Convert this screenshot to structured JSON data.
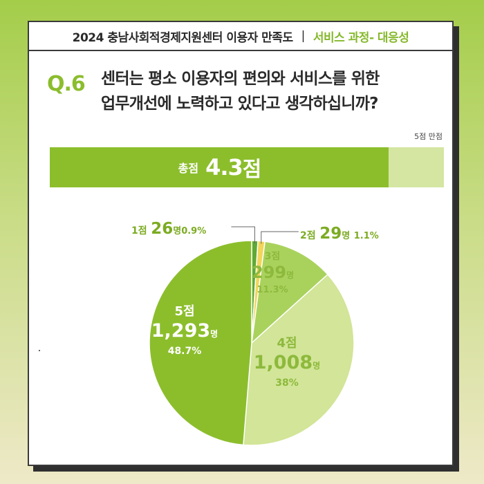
{
  "header": {
    "title": "2024 충남사회적경제지원센터 이용자 만족도",
    "separator": "|",
    "category": "서비스 과정- 대응성"
  },
  "question": {
    "number": "Q.6",
    "line1": "센터는 평소 이용자의 편의와 서비스를 위한",
    "line2": "업무개선에 노력하고 있다고 생각하십니까?"
  },
  "total": {
    "max_label": "5점 만점",
    "label": "총점",
    "score": "4.3",
    "unit": "점",
    "score_value": 4.3,
    "max_value": 5
  },
  "colors": {
    "green_dark": "#8cbe2c",
    "green_mid": "#a9d25d",
    "green_light": "#d2e598",
    "yellow": "#f2d55a",
    "green_small": "#5eaa34"
  },
  "chart_data": {
    "type": "pie",
    "slices": [
      {
        "category": "1점",
        "count": 26,
        "count_text": "26",
        "unit": "명",
        "percent": 0.9,
        "percent_text": "0.9%",
        "color": "#5eaa34"
      },
      {
        "category": "2점",
        "count": 29,
        "count_text": "29",
        "unit": "명",
        "percent": 1.1,
        "percent_text": "1.1%",
        "color": "#f2d55a"
      },
      {
        "category": "3점",
        "count": 299,
        "count_text": "299",
        "unit": "명",
        "percent": 11.3,
        "percent_text": "11.3%",
        "color": "#a9d25d"
      },
      {
        "category": "4점",
        "count": 1008,
        "count_text": "1,008",
        "unit": "명",
        "percent": 38,
        "percent_text": "38%",
        "color": "#d2e598"
      },
      {
        "category": "5점",
        "count": 1293,
        "count_text": "1,293",
        "unit": "명",
        "percent": 48.7,
        "percent_text": "48.7%",
        "color": "#8cbe2c"
      }
    ]
  }
}
